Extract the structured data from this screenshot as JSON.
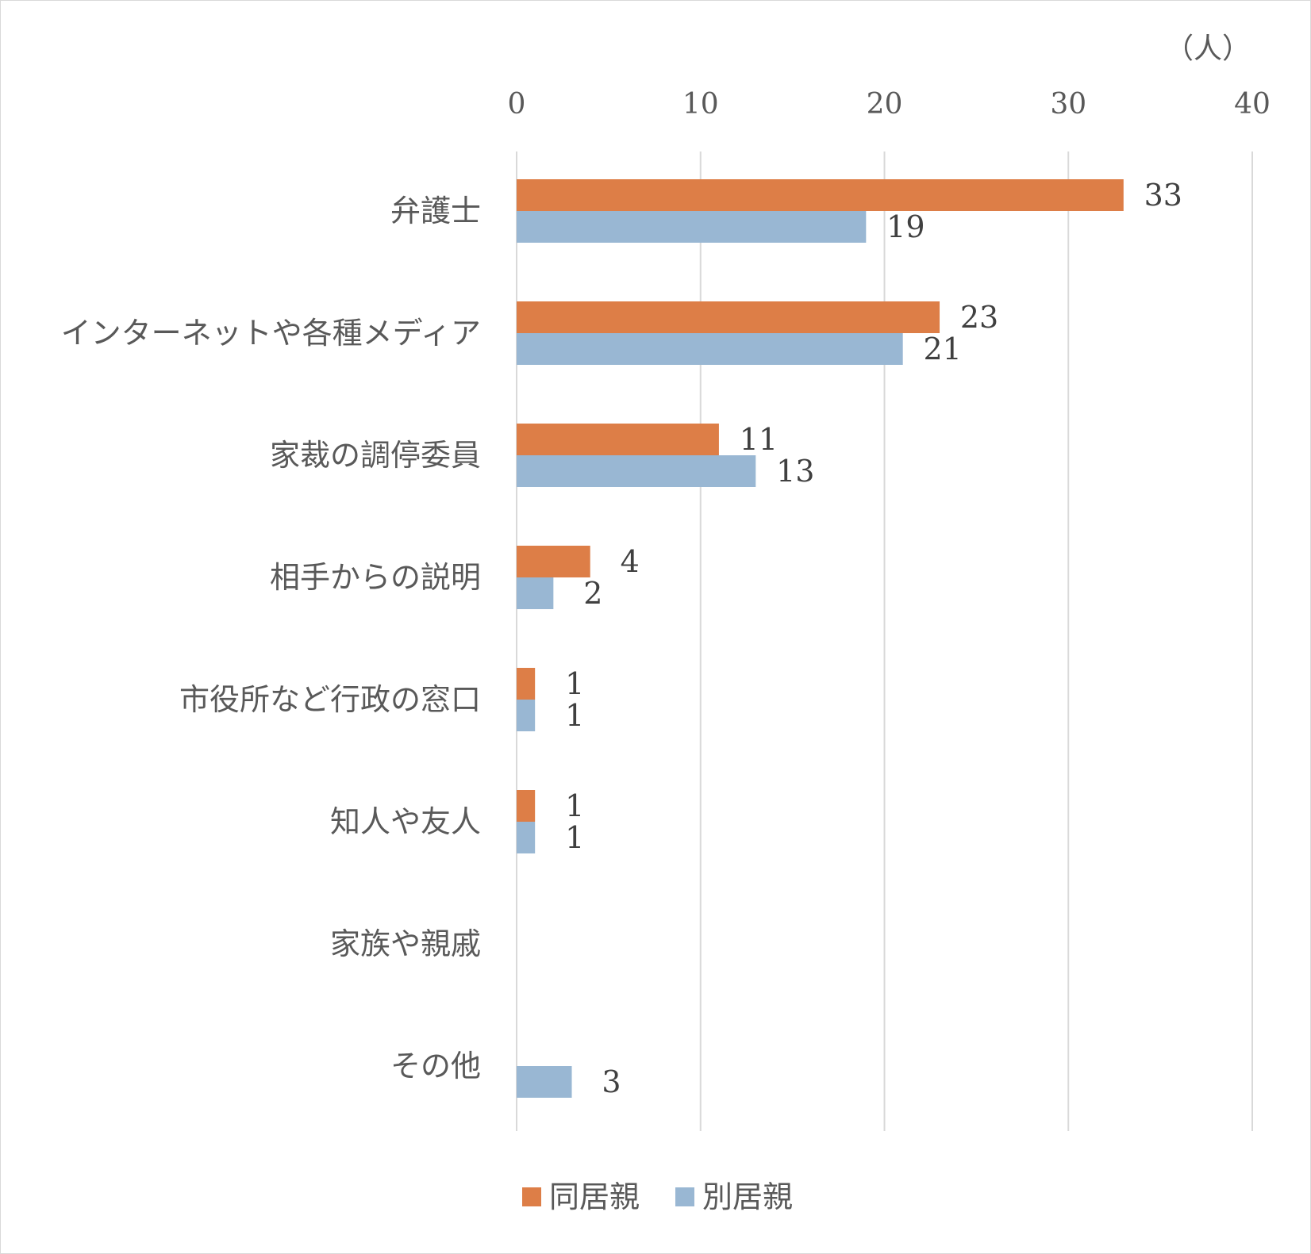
{
  "chart_data": {
    "type": "bar",
    "orientation": "horizontal",
    "unit_label": "（人）",
    "categories": [
      "弁護士",
      "インターネットや各種メディア",
      "家裁の調停委員",
      "相手からの説明",
      "市役所など行政の窓口",
      "知人や友人",
      "家族や親戚",
      "その他"
    ],
    "series": [
      {
        "name": "同居親",
        "color": "#dd7e47",
        "values": [
          33,
          23,
          11,
          4,
          1,
          1,
          null,
          null
        ]
      },
      {
        "name": "別居親",
        "color": "#99b7d3",
        "values": [
          19,
          21,
          13,
          2,
          1,
          1,
          null,
          3
        ]
      }
    ],
    "xlim": [
      0,
      40
    ],
    "xticks": [
      0,
      10,
      20,
      30,
      40
    ],
    "x_axis_position": "top",
    "grid": true,
    "legend_position": "bottom"
  }
}
